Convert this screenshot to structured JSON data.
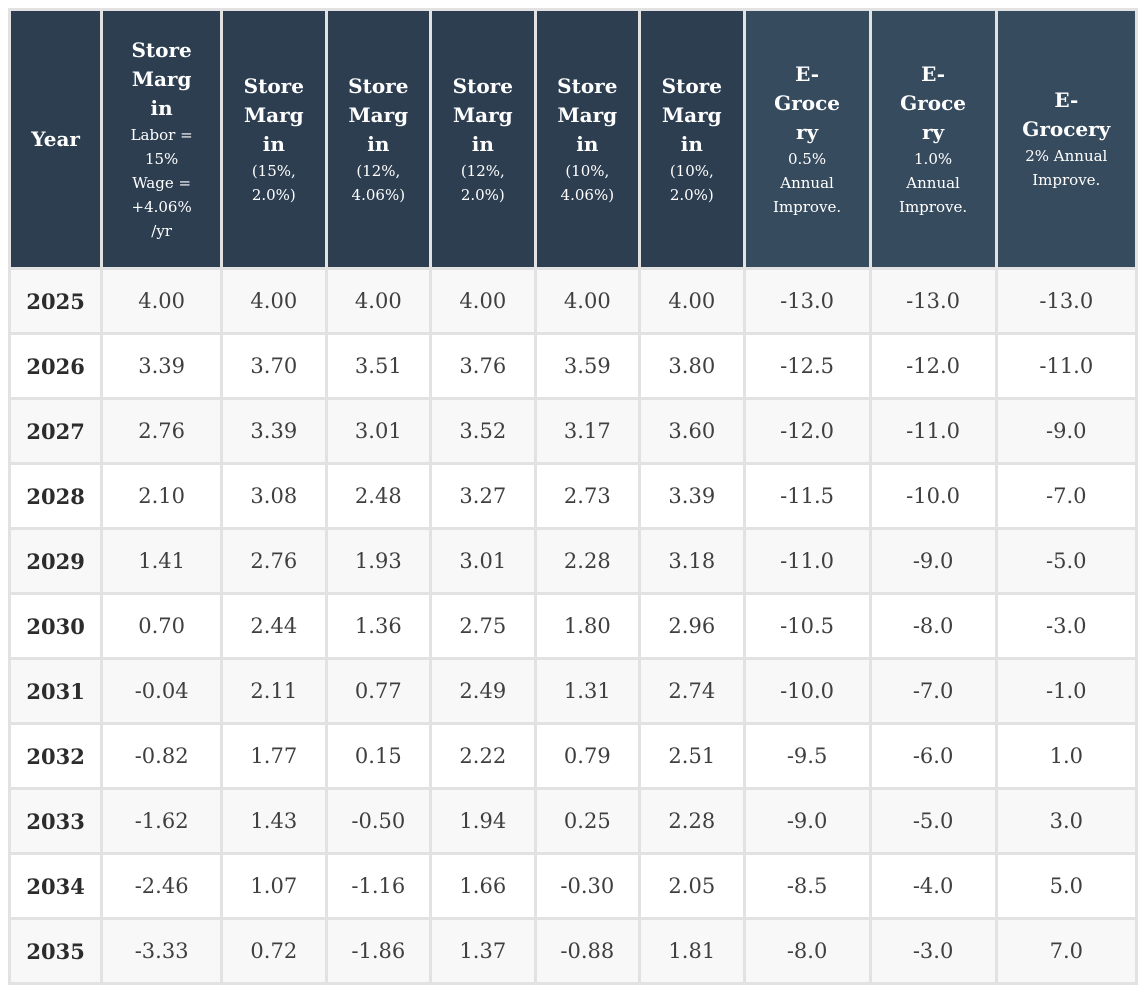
{
  "table": {
    "columns": [
      {
        "id": "year",
        "title": "Year",
        "subtitle": "",
        "group": "year"
      },
      {
        "id": "store-margin-labor15",
        "title": "Store Margin",
        "subtitle": "Labor = 15% Wage = +4.06%/yr",
        "group": "store"
      },
      {
        "id": "store-margin-15-2-0",
        "title": "Store Margin",
        "subtitle": "(15%, 2.0%)",
        "group": "store"
      },
      {
        "id": "store-margin-12-4-06",
        "title": "Store Margin",
        "subtitle": "(12%, 4.06%)",
        "group": "store"
      },
      {
        "id": "store-margin-12-2-0",
        "title": "Store Margin",
        "subtitle": "(12%, 2.0%)",
        "group": "store"
      },
      {
        "id": "store-margin-10-4-06",
        "title": "Store Margin",
        "subtitle": "(10%, 4.06%)",
        "group": "store"
      },
      {
        "id": "store-margin-10-2-0",
        "title": "Store Margin",
        "subtitle": "(10%, 2.0%)",
        "group": "store"
      },
      {
        "id": "e-grocery-0-5",
        "title": "E-Grocery",
        "subtitle": "0.5% Annual Improve.",
        "group": "egrocery"
      },
      {
        "id": "e-grocery-1-0",
        "title": "E-Grocery",
        "subtitle": "1.0% Annual Improve.",
        "group": "egrocery"
      },
      {
        "id": "e-grocery-2",
        "title": "E-Grocery",
        "subtitle": "2% Annual Improve.",
        "group": "egrocery"
      }
    ],
    "rows": [
      {
        "year": "2025",
        "values": [
          "4.00",
          "4.00",
          "4.00",
          "4.00",
          "4.00",
          "4.00",
          "-13.0",
          "-13.0",
          "-13.0"
        ]
      },
      {
        "year": "2026",
        "values": [
          "3.39",
          "3.70",
          "3.51",
          "3.76",
          "3.59",
          "3.80",
          "-12.5",
          "-12.0",
          "-11.0"
        ]
      },
      {
        "year": "2027",
        "values": [
          "2.76",
          "3.39",
          "3.01",
          "3.52",
          "3.17",
          "3.60",
          "-12.0",
          "-11.0",
          "-9.0"
        ]
      },
      {
        "year": "2028",
        "values": [
          "2.10",
          "3.08",
          "2.48",
          "3.27",
          "2.73",
          "3.39",
          "-11.5",
          "-10.0",
          "-7.0"
        ]
      },
      {
        "year": "2029",
        "values": [
          "1.41",
          "2.76",
          "1.93",
          "3.01",
          "2.28",
          "3.18",
          "-11.0",
          "-9.0",
          "-5.0"
        ]
      },
      {
        "year": "2030",
        "values": [
          "0.70",
          "2.44",
          "1.36",
          "2.75",
          "1.80",
          "2.96",
          "-10.5",
          "-8.0",
          "-3.0"
        ]
      },
      {
        "year": "2031",
        "values": [
          "-0.04",
          "2.11",
          "0.77",
          "2.49",
          "1.31",
          "2.74",
          "-10.0",
          "-7.0",
          "-1.0"
        ]
      },
      {
        "year": "2032",
        "values": [
          "-0.82",
          "1.77",
          "0.15",
          "2.22",
          "0.79",
          "2.51",
          "-9.5",
          "-6.0",
          "1.0"
        ]
      },
      {
        "year": "2033",
        "values": [
          "-1.62",
          "1.43",
          "-0.50",
          "1.94",
          "0.25",
          "2.28",
          "-9.0",
          "-5.0",
          "3.0"
        ]
      },
      {
        "year": "2034",
        "values": [
          "-2.46",
          "1.07",
          "-1.16",
          "1.66",
          "-0.30",
          "2.05",
          "-8.5",
          "-4.0",
          "5.0"
        ]
      },
      {
        "year": "2035",
        "values": [
          "-3.33",
          "0.72",
          "-1.86",
          "1.37",
          "-0.88",
          "1.81",
          "-8.0",
          "-3.0",
          "7.0"
        ]
      }
    ]
  },
  "colors": {
    "header_store_bg": "#2d3e51",
    "header_egrocery_bg": "#374b5f",
    "header_text": "#ffffff",
    "body_text": "#3f3f3f",
    "year_text": "#2c2c2c",
    "row_stripe_bg": "#f8f8f8",
    "row_plain_bg": "#ffffff",
    "border": "#e2e2e2"
  },
  "chart_data": {
    "type": "table",
    "title": "",
    "columns": [
      "Year",
      "Store Margin Labor = 15% Wage = +4.06%/yr",
      "Store Margin (15%, 2.0%)",
      "Store Margin (12%, 4.06%)",
      "Store Margin (12%, 2.0%)",
      "Store Margin (10%, 4.06%)",
      "Store Margin (10%, 2.0%)",
      "E-Grocery 0.5% Annual Improve.",
      "E-Grocery 1.0% Annual Improve.",
      "E-Grocery 2% Annual Improve."
    ],
    "rows": [
      [
        2025,
        4.0,
        4.0,
        4.0,
        4.0,
        4.0,
        4.0,
        -13.0,
        -13.0,
        -13.0
      ],
      [
        2026,
        3.39,
        3.7,
        3.51,
        3.76,
        3.59,
        3.8,
        -12.5,
        -12.0,
        -11.0
      ],
      [
        2027,
        2.76,
        3.39,
        3.01,
        3.52,
        3.17,
        3.6,
        -12.0,
        -11.0,
        -9.0
      ],
      [
        2028,
        2.1,
        3.08,
        2.48,
        3.27,
        2.73,
        3.39,
        -11.5,
        -10.0,
        -7.0
      ],
      [
        2029,
        1.41,
        2.76,
        1.93,
        3.01,
        2.28,
        3.18,
        -11.0,
        -9.0,
        -5.0
      ],
      [
        2030,
        0.7,
        2.44,
        1.36,
        2.75,
        1.8,
        2.96,
        -10.5,
        -8.0,
        -3.0
      ],
      [
        2031,
        -0.04,
        2.11,
        0.77,
        2.49,
        1.31,
        2.74,
        -10.0,
        -7.0,
        -1.0
      ],
      [
        2032,
        -0.82,
        1.77,
        0.15,
        2.22,
        0.79,
        2.51,
        -9.5,
        -6.0,
        1.0
      ],
      [
        2033,
        -1.62,
        1.43,
        -0.5,
        1.94,
        0.25,
        2.28,
        -9.0,
        -5.0,
        3.0
      ],
      [
        2034,
        -2.46,
        1.07,
        -1.16,
        1.66,
        -0.3,
        2.05,
        -8.5,
        -4.0,
        5.0
      ],
      [
        2035,
        -3.33,
        0.72,
        -1.86,
        1.37,
        -0.88,
        1.81,
        -8.0,
        -3.0,
        7.0
      ]
    ]
  }
}
